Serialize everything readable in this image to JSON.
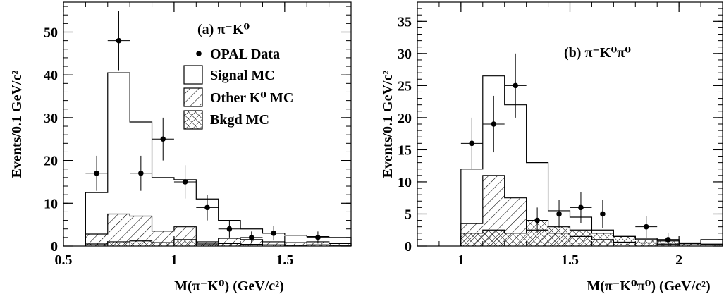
{
  "chart_data": [
    {
      "type": "histogram",
      "panel_label": "(a) π⁻K⁰",
      "xlabel": "M(π⁻K⁰) (GeV/c²)",
      "ylabel": "Events/0.1 GeV/c²",
      "xlim": [
        0.5,
        1.8
      ],
      "ylim": [
        0,
        57
      ],
      "xticks": [
        "0.5",
        "1",
        "1.5"
      ],
      "xtick_values": [
        0.5,
        1.0,
        1.5
      ],
      "yticks": [
        "0",
        "10",
        "20",
        "30",
        "40",
        "50"
      ],
      "ytick_values": [
        0,
        10,
        20,
        30,
        40,
        50
      ],
      "bin_edges": [
        0.6,
        0.7,
        0.8,
        0.9,
        1.0,
        1.1,
        1.2,
        1.3,
        1.4,
        1.5,
        1.6,
        1.7,
        1.8
      ],
      "legend": {
        "position": "top-right",
        "entries": [
          "OPAL Data",
          "Signal MC",
          "Other K⁰ MC",
          "Bkgd MC"
        ]
      },
      "series": [
        {
          "name": "Signal MC",
          "style": "open",
          "values": [
            12.5,
            40.5,
            29,
            16,
            15.5,
            11,
            6,
            4,
            3,
            2.5,
            2.2,
            2
          ]
        },
        {
          "name": "Other K⁰ MC",
          "style": "hatched",
          "values": [
            2.8,
            7.5,
            7,
            3.5,
            4.5,
            1,
            1.8,
            1.5,
            1,
            0.8,
            1,
            0.6
          ]
        },
        {
          "name": "Bkgd MC",
          "style": "crosshatched",
          "values": [
            0.5,
            1,
            1.2,
            0.8,
            1.5,
            0.5,
            0.6,
            0.4,
            0.3,
            0.2,
            0.3,
            0.2
          ]
        },
        {
          "name": "OPAL Data",
          "style": "points",
          "x": [
            0.65,
            0.75,
            0.85,
            0.95,
            1.05,
            1.15,
            1.25,
            1.35,
            1.45,
            1.65
          ],
          "y": [
            17,
            48,
            17,
            25,
            15,
            9,
            4,
            2,
            3,
            2
          ],
          "yerr": [
            4.1,
            6.9,
            4.1,
            5.0,
            3.9,
            3.0,
            2.0,
            1.4,
            1.7,
            1.4
          ]
        }
      ]
    },
    {
      "type": "histogram",
      "panel_label": "(b) π⁻K⁰π⁰",
      "xlabel": "M(π⁻K⁰π⁰) (GeV/c²)",
      "ylabel": "Events/0.1 GeV/c²",
      "xlim": [
        0.8,
        2.2
      ],
      "ylim": [
        0,
        38
      ],
      "xticks": [
        "1",
        "1.5",
        "2"
      ],
      "xtick_values": [
        1.0,
        1.5,
        2.0
      ],
      "yticks": [
        "0",
        "5",
        "10",
        "15",
        "20",
        "25",
        "30",
        "35"
      ],
      "ytick_values": [
        0,
        5,
        10,
        15,
        20,
        25,
        30,
        35
      ],
      "bin_edges": [
        1.0,
        1.1,
        1.2,
        1.3,
        1.4,
        1.5,
        1.6,
        1.7,
        1.8,
        1.9,
        2.0,
        2.1,
        2.2
      ],
      "series": [
        {
          "name": "Signal MC",
          "style": "open",
          "values": [
            12,
            26.5,
            22,
            13,
            5.5,
            4.5,
            2.5,
            1.5,
            1.2,
            1,
            0.5,
            1
          ]
        },
        {
          "name": "Other K⁰ MC",
          "style": "hatched",
          "values": [
            3.5,
            11,
            7.5,
            2.5,
            2,
            1.5,
            1,
            0.6,
            0.5,
            0.3,
            0.2,
            0.2
          ]
        },
        {
          "name": "Bkgd MC",
          "style": "crosshatched",
          "values": [
            2,
            2.5,
            2,
            4,
            3,
            2.5,
            2,
            1.5,
            1,
            0.8,
            0.4,
            0.3
          ]
        },
        {
          "name": "OPAL Data",
          "style": "points",
          "x": [
            1.05,
            1.15,
            1.25,
            1.35,
            1.45,
            1.55,
            1.65,
            1.85,
            1.95
          ],
          "y": [
            16,
            19,
            25,
            4,
            5,
            6,
            5,
            3,
            1
          ],
          "yerr": [
            4.0,
            4.4,
            5.0,
            2.0,
            2.2,
            2.4,
            2.2,
            1.7,
            1.0
          ]
        }
      ]
    }
  ]
}
